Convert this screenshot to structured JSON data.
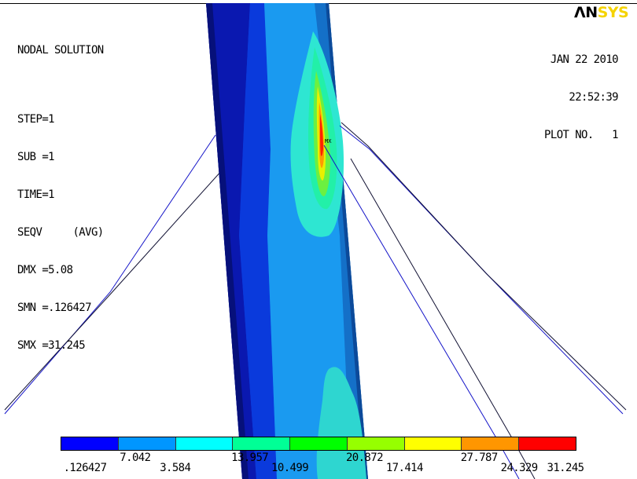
{
  "app": {
    "logo_an": "ΛN",
    "logo_sys": "SYS"
  },
  "info": {
    "title": "NODAL SOLUTION",
    "step": "STEP=1",
    "sub": "SUB =1",
    "time": "TIME=1",
    "result": "SEQV     (AVG)",
    "dmx": "DMX =5.08",
    "smn": "SMN =.126427",
    "smx": "SMX =31.245"
  },
  "date": {
    "date": "JAN 22 2010",
    "time": "22:52:39",
    "plot": "PLOT NO.   1"
  },
  "markers": {
    "max": "MX"
  },
  "legend": {
    "colors": [
      "#0000ff",
      "#0096ff",
      "#00ffff",
      "#00ff96",
      "#00ff00",
      "#96ff00",
      "#ffff00",
      "#ff9600",
      "#ff0000"
    ],
    "ticks_bottom": [
      ".126427",
      "3.584",
      "10.499",
      "17.414",
      "24.329",
      "31.245"
    ],
    "ticks_top": [
      "7.042",
      "13.957",
      "20.872",
      "27.787"
    ]
  },
  "colors": {
    "beam_dark": "#0a28c8",
    "beam_mid": "#1478e6",
    "beam_light": "#1aa0f0",
    "hot_cyan": "#2ee6d2",
    "wire": "#1414c8"
  }
}
